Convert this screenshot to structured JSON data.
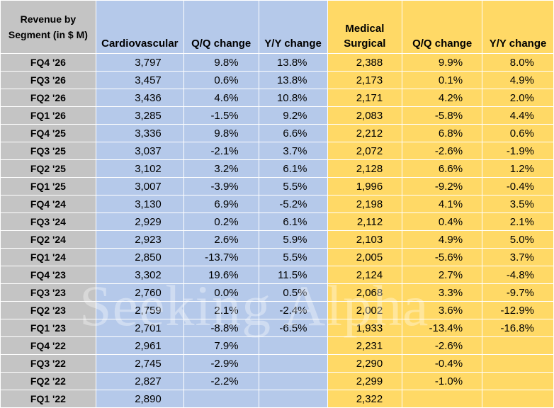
{
  "chart_data": {
    "type": "table",
    "title": "",
    "header_label": [
      "Revenue by",
      "Segment (in $ M)"
    ],
    "columns": [
      "Cardiovascular",
      "Q/Q change",
      "Y/Y change",
      "Medical Surgical",
      "Q/Q change",
      "Y/Y change"
    ],
    "medical_header": [
      "Medical",
      "Surgical"
    ],
    "rows": [
      {
        "period": "FQ4 '26",
        "cv": "3,797",
        "cv_qq": "9.8%",
        "cv_yy": "13.8%",
        "ms": "2,388",
        "ms_qq": "9.9%",
        "ms_yy": "8.0%"
      },
      {
        "period": "FQ3 '26",
        "cv": "3,457",
        "cv_qq": "0.6%",
        "cv_yy": "13.8%",
        "ms": "2,173",
        "ms_qq": "0.1%",
        "ms_yy": "4.9%"
      },
      {
        "period": "FQ2 '26",
        "cv": "3,436",
        "cv_qq": "4.6%",
        "cv_yy": "10.8%",
        "ms": "2,171",
        "ms_qq": "4.2%",
        "ms_yy": "2.0%"
      },
      {
        "period": "FQ1 '26",
        "cv": "3,285",
        "cv_qq": "-1.5%",
        "cv_yy": "9.2%",
        "ms": "2,083",
        "ms_qq": "-5.8%",
        "ms_yy": "4.4%"
      },
      {
        "period": "FQ4 '25",
        "cv": "3,336",
        "cv_qq": "9.8%",
        "cv_yy": "6.6%",
        "ms": "2,212",
        "ms_qq": "6.8%",
        "ms_yy": "0.6%"
      },
      {
        "period": "FQ3 '25",
        "cv": "3,037",
        "cv_qq": "-2.1%",
        "cv_yy": "3.7%",
        "ms": "2,072",
        "ms_qq": "-2.6%",
        "ms_yy": "-1.9%"
      },
      {
        "period": "FQ2 '25",
        "cv": "3,102",
        "cv_qq": "3.2%",
        "cv_yy": "6.1%",
        "ms": "2,128",
        "ms_qq": "6.6%",
        "ms_yy": "1.2%"
      },
      {
        "period": "FQ1 '25",
        "cv": "3,007",
        "cv_qq": "-3.9%",
        "cv_yy": "5.5%",
        "ms": "1,996",
        "ms_qq": "-9.2%",
        "ms_yy": "-0.4%"
      },
      {
        "period": "FQ4 '24",
        "cv": "3,130",
        "cv_qq": "6.9%",
        "cv_yy": "-5.2%",
        "ms": "2,198",
        "ms_qq": "4.1%",
        "ms_yy": "3.5%"
      },
      {
        "period": "FQ3 '24",
        "cv": "2,929",
        "cv_qq": "0.2%",
        "cv_yy": "6.1%",
        "ms": "2,112",
        "ms_qq": "0.4%",
        "ms_yy": "2.1%"
      },
      {
        "period": "FQ2 '24",
        "cv": "2,923",
        "cv_qq": "2.6%",
        "cv_yy": "5.9%",
        "ms": "2,103",
        "ms_qq": "4.9%",
        "ms_yy": "5.0%"
      },
      {
        "period": "FQ1 '24",
        "cv": "2,850",
        "cv_qq": "-13.7%",
        "cv_yy": "5.5%",
        "ms": "2,005",
        "ms_qq": "-5.6%",
        "ms_yy": "3.7%"
      },
      {
        "period": "FQ4 '23",
        "cv": "3,302",
        "cv_qq": "19.6%",
        "cv_yy": "11.5%",
        "ms": "2,124",
        "ms_qq": "2.7%",
        "ms_yy": "-4.8%"
      },
      {
        "period": "FQ3 '23",
        "cv": "2,760",
        "cv_qq": "0.0%",
        "cv_yy": "0.5%",
        "ms": "2,068",
        "ms_qq": "3.3%",
        "ms_yy": "-9.7%"
      },
      {
        "period": "FQ2 '23",
        "cv": "2,759",
        "cv_qq": "2.1%",
        "cv_yy": "-2.4%",
        "ms": "2,002",
        "ms_qq": "3.6%",
        "ms_yy": "-12.9%"
      },
      {
        "period": "FQ1 '23",
        "cv": "2,701",
        "cv_qq": "-8.8%",
        "cv_yy": "-6.5%",
        "ms": "1,933",
        "ms_qq": "-13.4%",
        "ms_yy": "-16.8%"
      },
      {
        "period": "FQ4 '22",
        "cv": "2,961",
        "cv_qq": "7.9%",
        "cv_yy": "",
        "ms": "2,231",
        "ms_qq": "-2.6%",
        "ms_yy": ""
      },
      {
        "period": "FQ3 '22",
        "cv": "2,745",
        "cv_qq": "-2.9%",
        "cv_yy": "",
        "ms": "2,290",
        "ms_qq": "-0.4%",
        "ms_yy": ""
      },
      {
        "period": "FQ2 '22",
        "cv": "2,827",
        "cv_qq": "-2.2%",
        "cv_yy": "",
        "ms": "2,299",
        "ms_qq": "-1.0%",
        "ms_yy": ""
      },
      {
        "period": "FQ1 '22",
        "cv": "2,890",
        "cv_qq": "",
        "cv_yy": "",
        "ms": "2,322",
        "ms_qq": "",
        "ms_yy": ""
      }
    ],
    "colors": {
      "label_bg": "#c4c4c4",
      "cardiovascular_bg": "#b5c9ea",
      "medical_surgical_bg": "#ffd966"
    }
  },
  "watermark": "Seeking Alpha"
}
